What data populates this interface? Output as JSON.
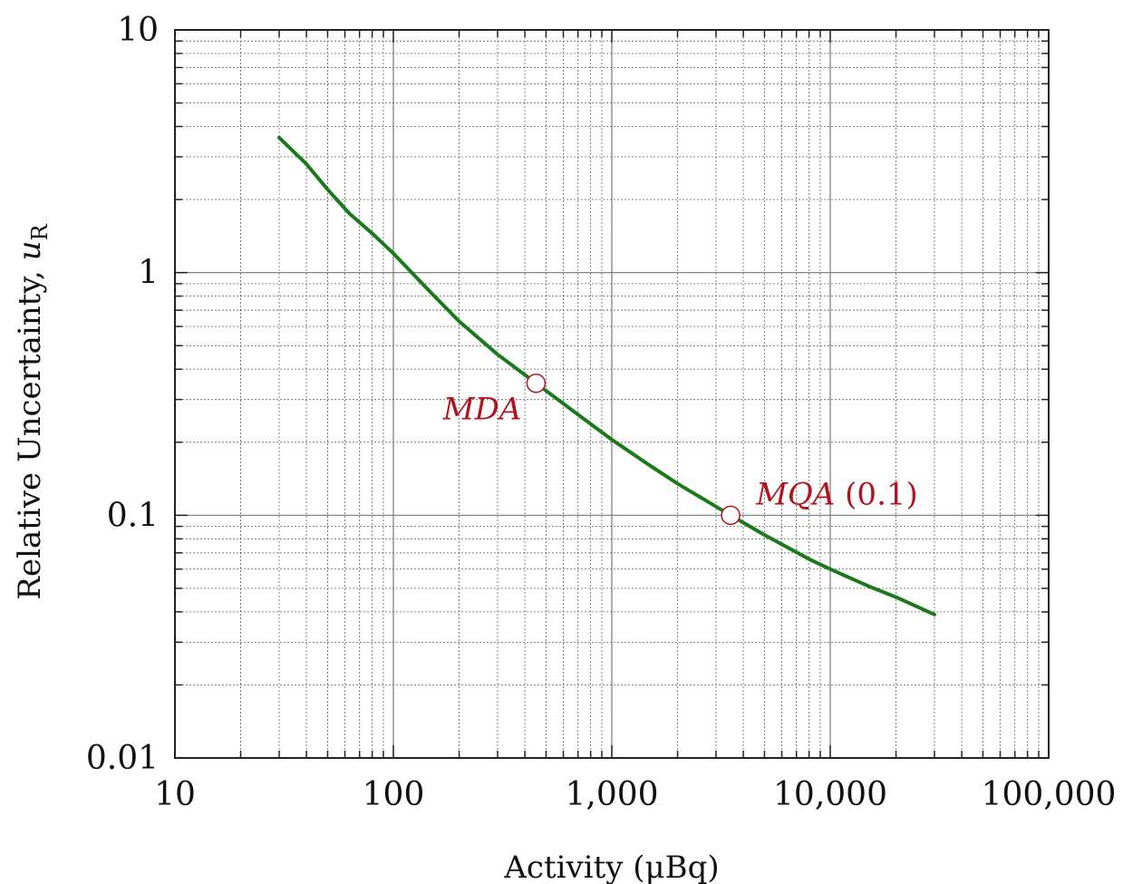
{
  "chart_data": {
    "type": "line",
    "xscale": "log",
    "yscale": "log",
    "xlim": [
      10,
      100000
    ],
    "ylim": [
      0.01,
      10
    ],
    "grid": true,
    "xlabel": "Activity (μBq)",
    "ylabel_main": "Relative Uncertainty, ",
    "ylabel_var": "u",
    "ylabel_sub": "R",
    "x_ticks": [
      10,
      100,
      1000,
      10000,
      100000
    ],
    "x_tick_labels": [
      "10",
      "100",
      "1,000",
      "10,000",
      "100,000"
    ],
    "y_ticks": [
      0.01,
      0.1,
      1,
      10
    ],
    "y_tick_labels": [
      "0.01",
      "0.1",
      "1",
      "10"
    ],
    "series": [
      {
        "color": "#1a7a1a",
        "x": [
          30,
          40,
          50,
          63,
          80,
          100,
          150,
          200,
          300,
          450,
          700,
          1000,
          1500,
          2000,
          3500,
          5000,
          8000,
          10000,
          15000,
          20000,
          30000
        ],
        "y": [
          3.6,
          2.8,
          2.2,
          1.75,
          1.45,
          1.2,
          0.82,
          0.63,
          0.46,
          0.35,
          0.26,
          0.205,
          0.16,
          0.135,
          0.1,
          0.083,
          0.066,
          0.06,
          0.051,
          0.046,
          0.039
        ]
      }
    ],
    "points": [
      {
        "label_italic": "MDA",
        "label_rest": "",
        "x": 450,
        "y": 0.35
      },
      {
        "label_italic": "MQA",
        "label_rest": " (0.1)",
        "x": 3500,
        "y": 0.1
      }
    ],
    "colors": {
      "curve": "#1a7a1a",
      "annotation": "#b0141e",
      "grid": "#777777"
    }
  }
}
